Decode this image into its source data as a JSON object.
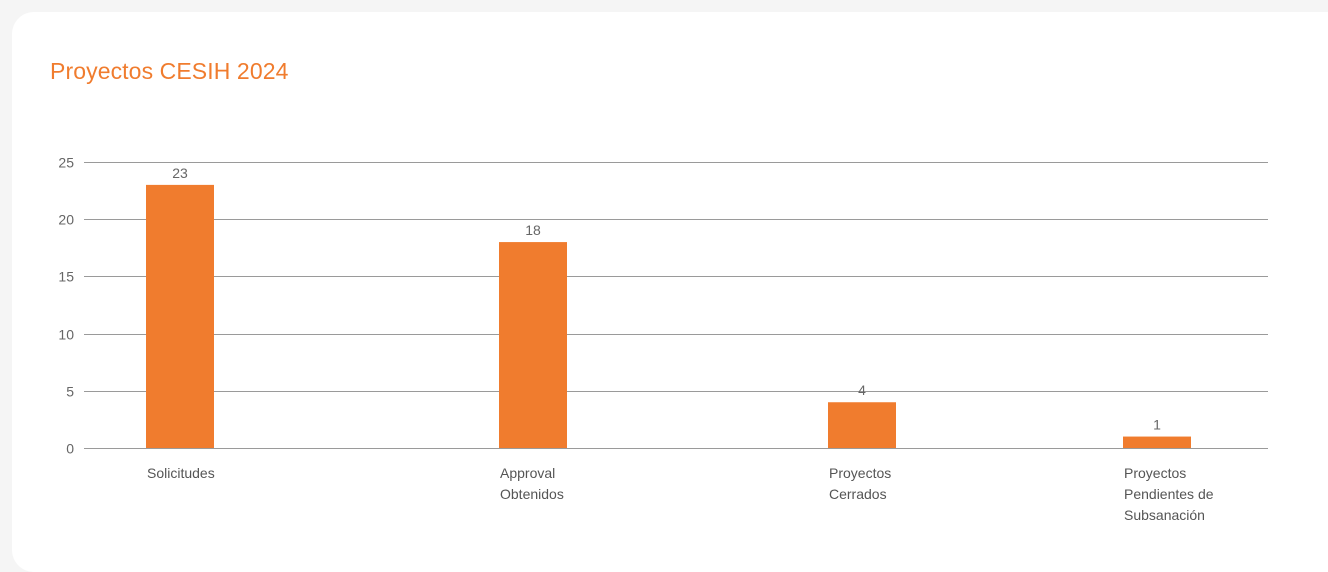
{
  "title": "Proyectos CESIH 2024",
  "colors": {
    "bar": "#f07c2e",
    "title": "#f07c2e",
    "grid": "#9a9a9a",
    "text": "#666666"
  },
  "chart_data": {
    "type": "bar",
    "title": "Proyectos CESIH 2024",
    "xlabel": "",
    "ylabel": "",
    "ylim": [
      0,
      25
    ],
    "yticks": [
      0,
      5,
      10,
      15,
      20,
      25
    ],
    "grid": true,
    "categories": [
      [
        "Solicitudes"
      ],
      [
        "Approval",
        "Obtenidos"
      ],
      [
        "Proyectos",
        "Cerrados"
      ],
      [
        "Proyectos",
        "Pendientes de",
        "Subsanación"
      ]
    ],
    "values": [
      23,
      18,
      4,
      1
    ],
    "data_labels": [
      "23",
      "18",
      "4",
      "1"
    ]
  }
}
